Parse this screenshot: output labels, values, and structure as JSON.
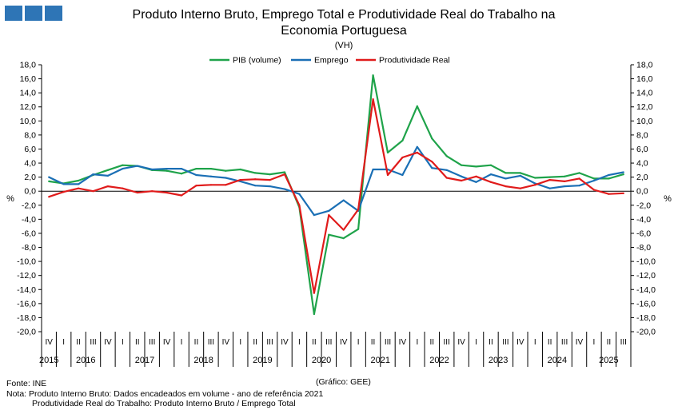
{
  "title_line1": "Produto Interno Bruto, Emprego Total e Produtividade Real do Trabalho na",
  "title_line2": "Economia Portuguesa",
  "subtitle": "(VH)",
  "source_label": "(Gráfico: GEE)",
  "footer": {
    "source": "Fonte: INE",
    "note1": "Nota: Produto Interno Bruto: Dados encadeados em volume - ano de referência 2021",
    "note2": "Produtividade Real do Trabalho: Produto Interno Bruto / Emprego Total"
  },
  "colors": {
    "pib": "#1fa34a",
    "emprego": "#1a6fb5",
    "produtividade": "#e01b1b",
    "logo": "#2e75b6"
  },
  "chart_data": {
    "type": "line",
    "title": "Produto Interno Bruto, Emprego Total e Produtividade Real do Trabalho na Economia Portuguesa",
    "subtitle": "(VH)",
    "ylabel": "%",
    "ylim": [
      -20,
      18
    ],
    "ytick_step": 2,
    "ytick_labels": [
      "18,0",
      "16,0",
      "14,0",
      "12,0",
      "10,0",
      "8,0",
      "6,0",
      "4,0",
      "2,0",
      "0,0",
      "-2,0",
      "-4,0",
      "-6,0",
      "-8,0",
      "-10,0",
      "-12,0",
      "-14,0",
      "-16,0",
      "-18,0",
      "-20,0"
    ],
    "legend_position": "top-center",
    "x": [
      "2015 IV",
      "2016 I",
      "2016 II",
      "2016 III",
      "2016 IV",
      "2017 I",
      "2017 II",
      "2017 III",
      "2017 IV",
      "2018 I",
      "2018 II",
      "2018 III",
      "2018 IV",
      "2019 I",
      "2019 II",
      "2019 III",
      "2019 IV",
      "2020 I",
      "2020 II",
      "2020 III",
      "2020 IV",
      "2021 I",
      "2021 II",
      "2021 III",
      "2021 IV",
      "2022 I",
      "2022 II",
      "2022 III",
      "2022 IV",
      "2023 I",
      "2023 II",
      "2023 III",
      "2023 IV",
      "2024 I",
      "2024 II",
      "2024 III",
      "2024 IV",
      "2025 I",
      "2025 II",
      "2025 III"
    ],
    "quarter_labels": [
      "IV",
      "I",
      "II",
      "III",
      "IV",
      "I",
      "II",
      "III",
      "IV",
      "I",
      "II",
      "III",
      "IV",
      "I",
      "II",
      "III",
      "IV",
      "I",
      "II",
      "III",
      "IV",
      "I",
      "II",
      "III",
      "IV",
      "I",
      "II",
      "III",
      "IV",
      "I",
      "II",
      "III",
      "IV",
      "I",
      "II",
      "III",
      "IV",
      "I",
      "II",
      "III"
    ],
    "years": [
      {
        "label": "2015",
        "from": 0,
        "to": 0
      },
      {
        "label": "2016",
        "from": 1,
        "to": 4
      },
      {
        "label": "2017",
        "from": 5,
        "to": 8
      },
      {
        "label": "2018",
        "from": 9,
        "to": 12
      },
      {
        "label": "2019",
        "from": 13,
        "to": 16
      },
      {
        "label": "2020",
        "from": 17,
        "to": 20
      },
      {
        "label": "2021",
        "from": 21,
        "to": 24
      },
      {
        "label": "2022",
        "from": 25,
        "to": 28
      },
      {
        "label": "2023",
        "from": 29,
        "to": 32
      },
      {
        "label": "2024",
        "from": 33,
        "to": 36
      },
      {
        "label": "2025",
        "from": 37,
        "to": 39
      }
    ],
    "series": [
      {
        "key": "pib",
        "name": "PIB (volume)",
        "values": [
          1.4,
          1.1,
          1.5,
          2.3,
          3.0,
          3.7,
          3.6,
          3.0,
          2.9,
          2.5,
          3.2,
          3.2,
          2.9,
          3.1,
          2.6,
          2.4,
          2.7,
          -2.3,
          -17.5,
          -6.2,
          -6.7,
          -5.4,
          16.5,
          5.5,
          7.2,
          12.1,
          7.5,
          5.0,
          3.7,
          3.5,
          3.7,
          2.6,
          2.6,
          1.9,
          2.0,
          2.1,
          2.6,
          1.8,
          1.8,
          2.4
        ]
      },
      {
        "key": "emprego",
        "name": "Emprego",
        "values": [
          2.0,
          1.0,
          1.0,
          2.4,
          2.2,
          3.2,
          3.6,
          3.1,
          3.2,
          3.2,
          2.3,
          2.1,
          1.9,
          1.4,
          0.8,
          0.7,
          0.3,
          -0.4,
          -3.4,
          -2.8,
          -1.3,
          -2.8,
          3.1,
          3.1,
          2.3,
          6.3,
          3.3,
          3.0,
          2.1,
          1.3,
          2.4,
          1.8,
          2.2,
          1.1,
          0.4,
          0.7,
          0.8,
          1.5,
          2.3,
          2.7
        ]
      },
      {
        "key": "produtividade",
        "name": "Produtividade Real",
        "values": [
          -0.8,
          -0.1,
          0.4,
          0.0,
          0.7,
          0.4,
          -0.2,
          0.0,
          -0.2,
          -0.6,
          0.8,
          0.9,
          0.9,
          1.6,
          1.7,
          1.6,
          2.4,
          -2.0,
          -14.5,
          -3.4,
          -5.5,
          -2.6,
          13.1,
          2.3,
          4.8,
          5.5,
          4.2,
          1.9,
          1.5,
          2.1,
          1.3,
          0.7,
          0.4,
          0.9,
          1.6,
          1.4,
          1.8,
          0.2,
          -0.4,
          -0.3
        ]
      }
    ]
  }
}
